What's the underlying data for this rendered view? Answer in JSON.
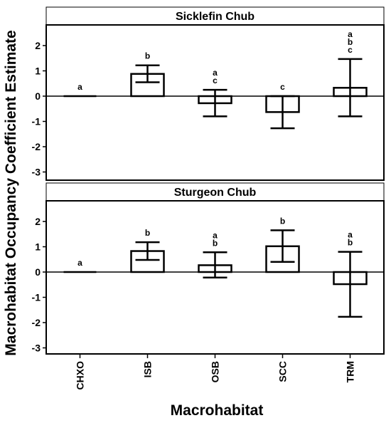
{
  "chart_data": {
    "type": "bar",
    "ylabel": "Macrohabitat Occupancy Coefficient Estimate",
    "xlabel": "Macrohabitat",
    "categories": [
      "CHXO",
      "ISB",
      "OSB",
      "SCC",
      "TRM"
    ],
    "ylim": [
      -3.3,
      2.8
    ],
    "yticks": [
      -3,
      -2,
      -1,
      0,
      1,
      2
    ],
    "error_bars": true,
    "panels": [
      {
        "title": "Sicklefin Chub",
        "values": [
          0.0,
          0.88,
          -0.28,
          -0.63,
          0.33
        ],
        "error_low": [
          0.0,
          0.55,
          -0.8,
          -1.27,
          -0.8
        ],
        "error_high": [
          0.0,
          1.22,
          0.25,
          0.0,
          1.47
        ],
        "letters": [
          [
            "a"
          ],
          [
            "b"
          ],
          [
            "a",
            "c"
          ],
          [
            "c"
          ],
          [
            "a",
            "b",
            "c"
          ]
        ]
      },
      {
        "title": "Sturgeon Chub",
        "values": [
          0.0,
          0.83,
          0.27,
          1.02,
          -0.48
        ],
        "error_low": [
          0.0,
          0.48,
          -0.22,
          0.4,
          -1.77
        ],
        "error_high": [
          0.0,
          1.18,
          0.78,
          1.65,
          0.8
        ],
        "letters": [
          [
            "a"
          ],
          [
            "b"
          ],
          [
            "a",
            "b"
          ],
          [
            "b"
          ],
          [
            "a",
            "b"
          ]
        ]
      }
    ]
  }
}
